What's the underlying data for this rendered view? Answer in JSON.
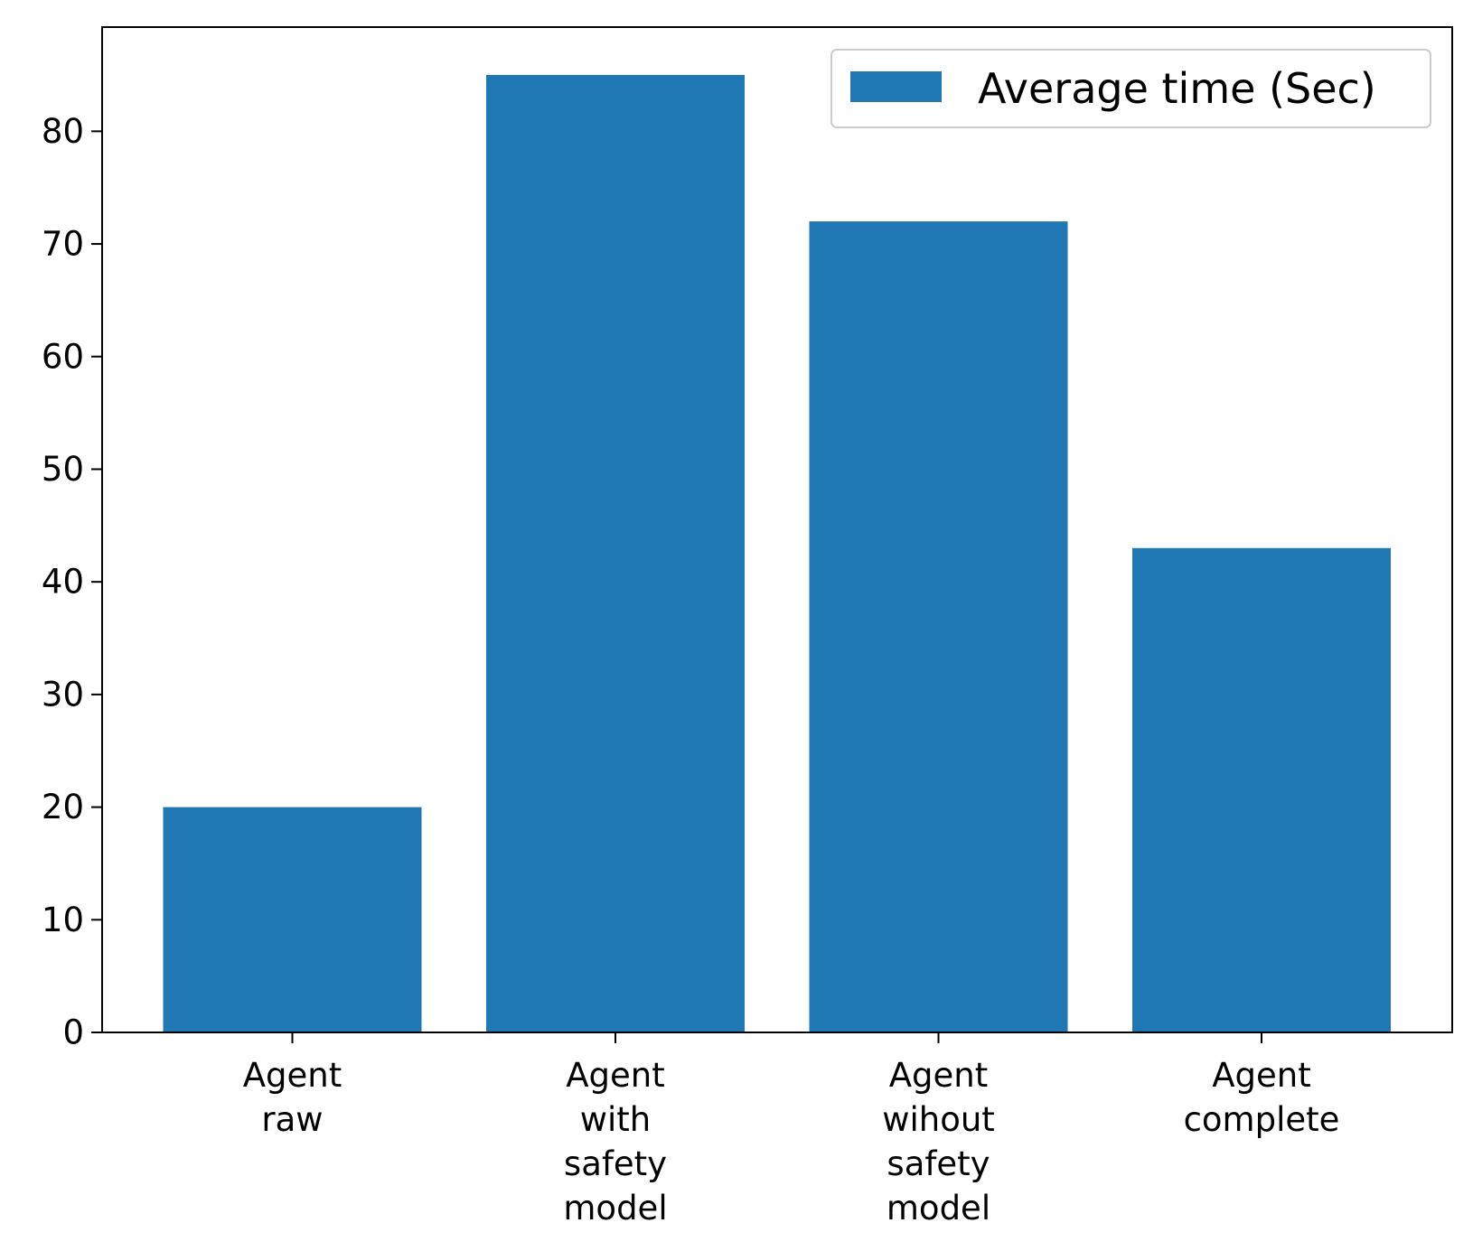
{
  "chart_data": {
    "type": "bar",
    "title": "",
    "xlabel": "",
    "ylabel": "",
    "categories": [
      [
        "Agent",
        "raw"
      ],
      [
        "Agent",
        "with",
        "safety",
        "model"
      ],
      [
        "Agent",
        "wihout",
        "safety",
        "model"
      ],
      [
        "Agent",
        "complete"
      ]
    ],
    "series": [
      {
        "name": "Average time (Sec)",
        "values": [
          20,
          85,
          72,
          43
        ],
        "color": "#1f77b4"
      }
    ],
    "ylim": [
      0,
      89.25
    ],
    "yticks": [
      0,
      10,
      20,
      30,
      40,
      50,
      60,
      70,
      80
    ],
    "grid": false,
    "legend_position": "top-right"
  }
}
